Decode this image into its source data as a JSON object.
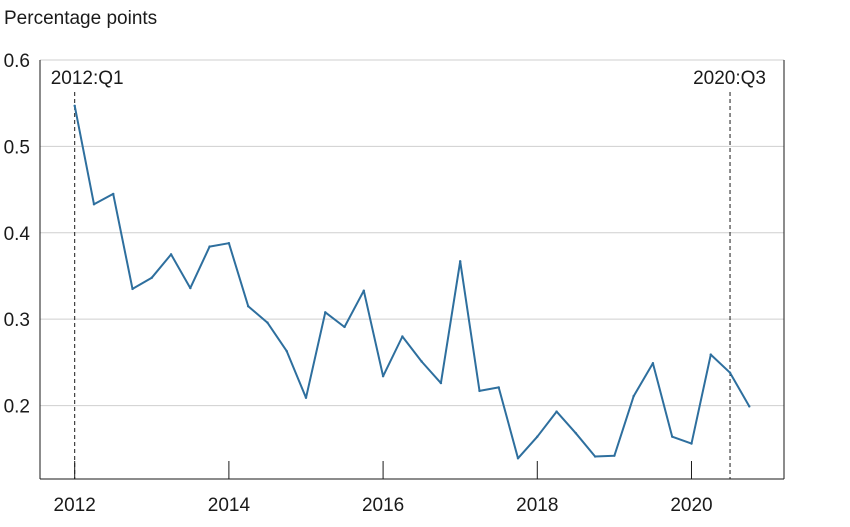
{
  "chart_data": {
    "type": "line",
    "unit_label": "Percentage points",
    "title": "",
    "xlabel": "",
    "ylabel": "",
    "xlim": [
      2011.55,
      2021.2
    ],
    "ylim": [
      0.115,
      0.6
    ],
    "x_ticks": [
      2012,
      2014,
      2016,
      2018,
      2020
    ],
    "x_tick_labels": [
      "2012",
      "2014",
      "2016",
      "2018",
      "2020"
    ],
    "y_ticks": [
      0.2,
      0.3,
      0.4,
      0.5,
      0.6
    ],
    "y_tick_labels": [
      "0.2",
      "0.3",
      "0.4",
      "0.5",
      "0.6"
    ],
    "grid": "horizontal",
    "line_color": "#2e6f9e",
    "series": [
      {
        "x": [
          2012.0,
          2012.25,
          2012.5,
          2012.75,
          2013.0,
          2013.25,
          2013.5,
          2013.75,
          2014.0,
          2014.25,
          2014.5,
          2014.75,
          2015.0,
          2015.25,
          2015.5,
          2015.75,
          2016.0,
          2016.25,
          2016.5,
          2016.75,
          2017.0,
          2017.25,
          2017.5,
          2017.75,
          2018.0,
          2018.25,
          2018.5,
          2018.75,
          2019.0,
          2019.25,
          2019.5,
          2019.75,
          2020.0,
          2020.25,
          2020.5,
          2020.75
        ],
        "values": [
          0.547,
          0.433,
          0.445,
          0.335,
          0.348,
          0.375,
          0.336,
          0.384,
          0.388,
          0.315,
          0.296,
          0.263,
          0.209,
          0.308,
          0.291,
          0.333,
          0.234,
          0.28,
          0.251,
          0.226,
          0.367,
          0.217,
          0.221,
          0.139,
          0.164,
          0.193,
          0.168,
          0.141,
          0.142,
          0.211,
          0.249,
          0.164,
          0.156,
          0.259,
          0.238,
          0.199
        ]
      }
    ],
    "annotations": [
      {
        "label": "2012:Q1",
        "x": 2012.0,
        "style": "dashed-vertical",
        "label_side": "right"
      },
      {
        "label": "2020:Q3",
        "x": 2020.5,
        "style": "dashed-vertical",
        "label_side": "left"
      }
    ]
  }
}
